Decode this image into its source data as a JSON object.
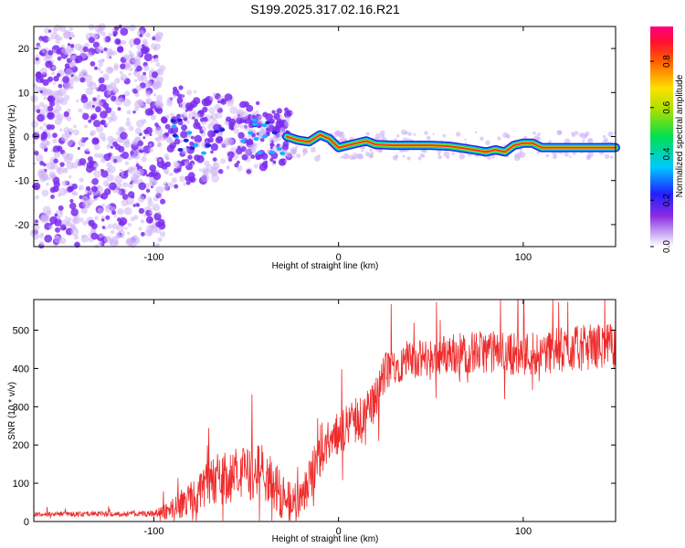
{
  "title": "S199.2025.317.02.16.R21",
  "colors": {
    "snr_line": "#ee2b2b",
    "spectro_points": "#7b2cf0",
    "spectro_light": "#cdb2f5"
  },
  "chart_data": [
    {
      "type": "heatmap",
      "name": "spectrogram",
      "xlabel": "Height of straight line (km)",
      "ylabel": "Frequency (Hz)",
      "xlim": [
        -165,
        150
      ],
      "ylim": [
        -25,
        25
      ],
      "xticks": [
        -100,
        0,
        100
      ],
      "xtick_labels": [
        "-100",
        "0",
        "100"
      ],
      "yticks": [
        -20,
        -10,
        0,
        10,
        20
      ],
      "ytick_labels": [
        "-20",
        "-10",
        "0",
        "10",
        "20"
      ],
      "colorbar": {
        "label": "Normalized spectral amplitude",
        "range": [
          0,
          0.95
        ],
        "ticks": [
          0.0,
          0.2,
          0.4,
          0.6,
          0.8
        ],
        "tick_labels": [
          "0.0",
          "0.2",
          "0.4",
          "0.6",
          "0.8"
        ]
      },
      "ridge": {
        "x": [
          -28,
          -22,
          -16,
          -10,
          -5,
          0,
          5,
          10,
          15,
          20,
          30,
          40,
          50,
          60,
          70,
          80,
          85,
          90,
          95,
          100,
          105,
          110,
          120,
          130,
          140,
          150
        ],
        "freq": [
          0.0,
          -0.8,
          -1.2,
          0.4,
          -0.5,
          -2.5,
          -2.0,
          -1.5,
          -1.0,
          -1.8,
          -2.0,
          -2.0,
          -2.0,
          -2.2,
          -2.8,
          -3.5,
          -3.0,
          -3.5,
          -2.0,
          -1.5,
          -1.5,
          -2.5,
          -2.5,
          -2.5,
          -2.5,
          -2.5
        ]
      },
      "noise_region": [
        -165,
        -95
      ],
      "burst_region": [
        -95,
        -25
      ]
    },
    {
      "type": "line",
      "name": "snr",
      "xlabel": "Height of straight line (km)",
      "ylabel": "SNR (10 * v/v)",
      "xlim": [
        -165,
        150
      ],
      "ylim": [
        0,
        580
      ],
      "xticks": [
        -100,
        0,
        100
      ],
      "xtick_labels": [
        "-100",
        "0",
        "100"
      ],
      "yticks": [
        0,
        100,
        200,
        300,
        400,
        500
      ],
      "ytick_labels": [
        "0",
        "100",
        "200",
        "300",
        "400",
        "500"
      ],
      "series": [
        {
          "name": "SNR",
          "envelope_x": [
            -165,
            -100,
            -90,
            -80,
            -70,
            -60,
            -50,
            -40,
            -30,
            -20,
            -10,
            0,
            10,
            20,
            25,
            30,
            40,
            50,
            60,
            80,
            100,
            120,
            140,
            150
          ],
          "envelope_y": [
            20,
            22,
            35,
            70,
            110,
            130,
            140,
            150,
            70,
            60,
            200,
            240,
            280,
            330,
            400,
            420,
            430,
            440,
            450,
            455,
            450,
            460,
            470,
            470
          ],
          "spread": [
            6,
            8,
            30,
            50,
            60,
            70,
            70,
            80,
            60,
            50,
            70,
            60,
            60,
            60,
            60,
            50,
            50,
            50,
            55,
            55,
            60,
            60,
            60,
            60
          ]
        }
      ]
    }
  ]
}
